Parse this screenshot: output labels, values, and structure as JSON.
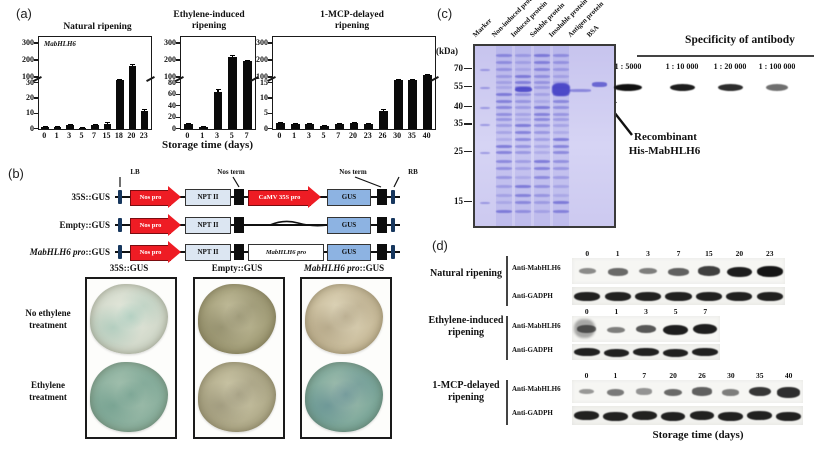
{
  "panels": {
    "a": {
      "label": "(a)",
      "gene_label": "MabHLH6",
      "xlabel": "Storage time (days)"
    },
    "b": {
      "label": "(b)",
      "top_labels": [
        "LB",
        "Nos term",
        "Nos term",
        "RB"
      ],
      "construct_rows": [
        {
          "label_italic": "",
          "label": "35S::GUS",
          "elements": [
            "Nos pro",
            "NPT II",
            "CaMV 35S pro",
            "GUS"
          ]
        },
        {
          "label_italic": "",
          "label": "Empty::GUS",
          "elements": [
            "Nos pro",
            "NPT II",
            "GUS"
          ]
        },
        {
          "label_italic": "MabHLH6 pro",
          "label": "::GUS",
          "elements": [
            "Nos pro",
            "NPT II",
            "MabHLH6 pro",
            "GUS"
          ]
        }
      ],
      "gus_assay": {
        "columns": [
          {
            "italic": "",
            "rest": "35S::GUS"
          },
          {
            "italic": "",
            "rest": "Empty::GUS"
          },
          {
            "italic": "MabHLH6 pro",
            "rest": "::GUS"
          }
        ],
        "row_label_1": "No ethylene\ntreatment",
        "row_label_2": "Ethylene\ntreatment",
        "discs": [
          {
            "name": "35s-no-ethylene",
            "outer": "#ccd4c5",
            "mid": "#e8ebdf",
            "accent": "#78b2a2"
          },
          {
            "name": "empty-no-ethylene",
            "outer": "#9b9670",
            "mid": "#cbc6a5",
            "accent": "#6f6b4c"
          },
          {
            "name": "pro-no-ethylene",
            "outer": "#c2b492",
            "mid": "#e5ddc3",
            "accent": "#8d7d5d"
          },
          {
            "name": "35s-ethylene",
            "outer": "#84ab99",
            "mid": "#aac5b3",
            "accent": "#4d8677"
          },
          {
            "name": "empty-ethylene",
            "outer": "#a9a382",
            "mid": "#d3ceaf",
            "accent": "#78725a"
          },
          {
            "name": "pro-ethylene",
            "outer": "#74a295",
            "mid": "#a8c2b3",
            "accent": "#3e7184"
          }
        ]
      }
    },
    "c": {
      "label": "(c)",
      "gel": {
        "kda_label": "(kDa)",
        "lanes": [
          "Marker",
          "Non-induced protein",
          "Induced protein",
          "Soluble protein",
          "Insoluble protein",
          "Antigen protein",
          "BSA"
        ],
        "markers": [
          "70",
          "55",
          "40",
          "35",
          "25",
          "15"
        ]
      },
      "blot": {
        "title": "Specificity of antibody",
        "dilutions": [
          "1 : 5000",
          "1 : 10 000",
          "1 : 20 000",
          "1 : 100 000"
        ],
        "annotation_line1": "Recombinant",
        "annotation_line2": "His-MabHLH6"
      }
    },
    "d": {
      "label": "(d)",
      "xlabel": "Storage time (days)",
      "antibody_row1": "Anti-MabHLH6",
      "antibody_row2": "Anti-GADPH",
      "groups": [
        {
          "name": "Natural ripening",
          "timepoints": [
            "0",
            "1",
            "3",
            "7",
            "15",
            "20",
            "23"
          ],
          "mabhlh6_intensity": [
            0.3,
            0.5,
            0.38,
            0.55,
            0.75,
            0.95,
            1.0
          ],
          "gadph_intensity": 0.95
        },
        {
          "name": "Ethylene-induced\nripening",
          "timepoints": [
            "0",
            "1",
            "3",
            "5",
            "7"
          ],
          "mabhlh6_intensity": [
            0.5,
            0.38,
            0.6,
            0.95,
            0.95
          ],
          "gadph_intensity": 0.95
        },
        {
          "name": "1-MCP-delayed\nripening",
          "timepoints": [
            "0",
            "1",
            "7",
            "20",
            "26",
            "30",
            "35",
            "40"
          ],
          "mabhlh6_intensity": [
            0.22,
            0.4,
            0.24,
            0.5,
            0.55,
            0.38,
            0.8,
            0.85
          ],
          "gadph_intensity": 0.95
        }
      ]
    }
  },
  "colors": {
    "arrow_red": "#ee1c24",
    "npt_fill": "#dce6f2",
    "gus_fill": "#8db3e2",
    "border_blue": "#17375e",
    "gel_band": "#4a46c8",
    "bar": "#0a0a0a"
  },
  "chart_data": [
    {
      "type": "bar",
      "title": "Natural ripening",
      "gene": "MabHLH6",
      "categories": [
        "0",
        "1",
        "3",
        "5",
        "7",
        "15",
        "18",
        "20",
        "23"
      ],
      "values": [
        1,
        1.5,
        2.5,
        0.8,
        2.5,
        3.5,
        60,
        170,
        12
      ],
      "errors": [
        0.2,
        0.2,
        0.3,
        0.1,
        0.3,
        0.4,
        5,
        10,
        1.2
      ],
      "xlabel": "Storage time (days)",
      "axis": {
        "upper_ticks": [
          300,
          200,
          100
        ],
        "lower_ticks": [
          30,
          20,
          10,
          0
        ],
        "lower_max": 30,
        "upper_min": 100,
        "upper_max": 300,
        "broken": true
      }
    },
    {
      "type": "bar",
      "title": "Ethylene-induced\nripening",
      "categories": [
        "0",
        "1",
        "3",
        "5",
        "7"
      ],
      "values": [
        8,
        3,
        65,
        220,
        195
      ],
      "errors": [
        1,
        0.5,
        4,
        12,
        10
      ],
      "xlabel": "Storage time (days)",
      "axis": {
        "upper_ticks": [
          300,
          200,
          100
        ],
        "lower_ticks": [
          80,
          60,
          40,
          20,
          0
        ],
        "lower_max": 80,
        "upper_min": 100,
        "upper_max": 300,
        "broken": true
      }
    },
    {
      "type": "bar",
      "title": "1-MCP-delayed\nripening",
      "categories": [
        "0",
        "1",
        "3",
        "5",
        "7",
        "20",
        "23",
        "26",
        "30",
        "35",
        "40"
      ],
      "values": [
        2,
        1.5,
        1.5,
        1,
        1.5,
        2,
        1.5,
        6,
        75,
        95,
        115
      ],
      "errors": [
        0.3,
        0.2,
        0.2,
        0.15,
        0.2,
        0.3,
        0.2,
        0.6,
        6,
        6,
        7
      ],
      "xlabel": "Storage time (days)",
      "axis": {
        "upper_ticks": [
          300,
          200,
          100
        ],
        "lower_ticks": [
          15,
          10,
          5,
          0
        ],
        "lower_max": 15,
        "upper_min": 100,
        "upper_max": 300,
        "broken": true
      }
    }
  ]
}
